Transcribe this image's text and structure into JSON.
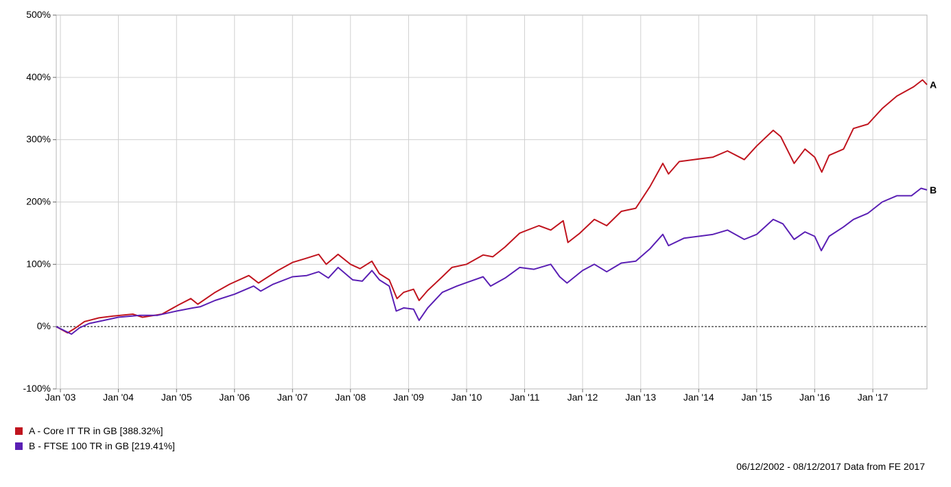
{
  "chart_data": {
    "type": "line",
    "ylim": [
      -100,
      500
    ],
    "y_ticks": [
      "-100%",
      "0%",
      "100%",
      "200%",
      "300%",
      "400%",
      "500%"
    ],
    "x_range": [
      "2002-12-06",
      "2017-12-08"
    ],
    "x_ticks": [
      {
        "label": "Jan '03",
        "date": "2003-01-01"
      },
      {
        "label": "Jan '04",
        "date": "2004-01-01"
      },
      {
        "label": "Jan '05",
        "date": "2005-01-01"
      },
      {
        "label": "Jan '06",
        "date": "2006-01-01"
      },
      {
        "label": "Jan '07",
        "date": "2007-01-01"
      },
      {
        "label": "Jan '08",
        "date": "2008-01-01"
      },
      {
        "label": "Jan '09",
        "date": "2009-01-01"
      },
      {
        "label": "Jan '10",
        "date": "2010-01-01"
      },
      {
        "label": "Jan '11",
        "date": "2011-01-01"
      },
      {
        "label": "Jan '12",
        "date": "2012-01-01"
      },
      {
        "label": "Jan '13",
        "date": "2013-01-01"
      },
      {
        "label": "Jan '14",
        "date": "2014-01-01"
      },
      {
        "label": "Jan '15",
        "date": "2015-01-01"
      },
      {
        "label": "Jan '16",
        "date": "2016-01-01"
      },
      {
        "label": "Jan '17",
        "date": "2017-01-01"
      }
    ],
    "grid": true,
    "zero_line": "dotted",
    "series": [
      {
        "name": "A - Core IT TR in GB [388.32%]",
        "label": "A",
        "color": "#c0141e",
        "points": [
          [
            "2002-12-06",
            0
          ],
          [
            "2003-02-15",
            -10
          ],
          [
            "2003-04-01",
            -3
          ],
          [
            "2003-06-01",
            8
          ],
          [
            "2003-09-01",
            14
          ],
          [
            "2003-12-01",
            17
          ],
          [
            "2004-04-01",
            20
          ],
          [
            "2004-06-01",
            15
          ],
          [
            "2004-10-01",
            20
          ],
          [
            "2005-01-15",
            35
          ],
          [
            "2005-04-01",
            45
          ],
          [
            "2005-05-15",
            36
          ],
          [
            "2005-09-01",
            55
          ],
          [
            "2005-12-01",
            68
          ],
          [
            "2006-04-01",
            82
          ],
          [
            "2006-06-01",
            70
          ],
          [
            "2006-10-01",
            90
          ],
          [
            "2007-01-01",
            103
          ],
          [
            "2007-04-01",
            110
          ],
          [
            "2007-06-15",
            116
          ],
          [
            "2007-08-01",
            100
          ],
          [
            "2007-10-15",
            116
          ],
          [
            "2008-01-01",
            100
          ],
          [
            "2008-03-01",
            93
          ],
          [
            "2008-05-15",
            105
          ],
          [
            "2008-07-01",
            85
          ],
          [
            "2008-09-01",
            75
          ],
          [
            "2008-10-20",
            45
          ],
          [
            "2008-12-01",
            55
          ],
          [
            "2009-02-01",
            60
          ],
          [
            "2009-03-08",
            42
          ],
          [
            "2009-05-01",
            58
          ],
          [
            "2009-08-01",
            80
          ],
          [
            "2009-10-01",
            95
          ],
          [
            "2010-01-01",
            100
          ],
          [
            "2010-04-15",
            115
          ],
          [
            "2010-06-15",
            112
          ],
          [
            "2010-09-01",
            128
          ],
          [
            "2010-12-01",
            150
          ],
          [
            "2011-04-01",
            162
          ],
          [
            "2011-06-15",
            155
          ],
          [
            "2011-09-01",
            170
          ],
          [
            "2011-10-01",
            135
          ],
          [
            "2011-12-15",
            150
          ],
          [
            "2012-03-15",
            172
          ],
          [
            "2012-06-01",
            162
          ],
          [
            "2012-09-01",
            185
          ],
          [
            "2012-12-01",
            190
          ],
          [
            "2013-03-01",
            225
          ],
          [
            "2013-05-20",
            262
          ],
          [
            "2013-06-25",
            245
          ],
          [
            "2013-09-01",
            265
          ],
          [
            "2013-12-01",
            268
          ],
          [
            "2014-04-01",
            272
          ],
          [
            "2014-07-01",
            282
          ],
          [
            "2014-10-15",
            268
          ],
          [
            "2015-01-01",
            290
          ],
          [
            "2015-04-15",
            315
          ],
          [
            "2015-06-01",
            305
          ],
          [
            "2015-08-25",
            262
          ],
          [
            "2015-11-01",
            285
          ],
          [
            "2016-01-01",
            272
          ],
          [
            "2016-02-15",
            248
          ],
          [
            "2016-04-01",
            275
          ],
          [
            "2016-07-01",
            285
          ],
          [
            "2016-09-01",
            318
          ],
          [
            "2016-12-01",
            325
          ],
          [
            "2017-03-01",
            350
          ],
          [
            "2017-06-01",
            370
          ],
          [
            "2017-09-15",
            385
          ],
          [
            "2017-11-10",
            396
          ],
          [
            "2017-12-08",
            388.32
          ]
        ]
      },
      {
        "name": "B - FTSE 100 TR in GB [219.41%]",
        "label": "B",
        "color": "#5a1fb4",
        "points": [
          [
            "2002-12-06",
            0
          ],
          [
            "2003-03-12",
            -12
          ],
          [
            "2003-05-01",
            -2
          ],
          [
            "2003-07-01",
            5
          ],
          [
            "2003-10-01",
            10
          ],
          [
            "2004-01-01",
            15
          ],
          [
            "2004-05-15",
            18
          ],
          [
            "2004-09-01",
            18
          ],
          [
            "2005-01-01",
            25
          ],
          [
            "2005-04-15",
            30
          ],
          [
            "2005-06-01",
            32
          ],
          [
            "2005-09-01",
            42
          ],
          [
            "2006-01-01",
            52
          ],
          [
            "2006-05-01",
            65
          ],
          [
            "2006-06-15",
            57
          ],
          [
            "2006-09-01",
            68
          ],
          [
            "2007-01-01",
            80
          ],
          [
            "2007-04-01",
            82
          ],
          [
            "2007-06-15",
            88
          ],
          [
            "2007-08-15",
            78
          ],
          [
            "2007-10-15",
            95
          ],
          [
            "2008-01-15",
            75
          ],
          [
            "2008-03-15",
            73
          ],
          [
            "2008-05-15",
            90
          ],
          [
            "2008-07-01",
            75
          ],
          [
            "2008-09-01",
            65
          ],
          [
            "2008-10-15",
            25
          ],
          [
            "2008-12-01",
            30
          ],
          [
            "2009-02-01",
            28
          ],
          [
            "2009-03-08",
            10
          ],
          [
            "2009-05-01",
            30
          ],
          [
            "2009-08-01",
            55
          ],
          [
            "2009-11-01",
            65
          ],
          [
            "2010-01-15",
            72
          ],
          [
            "2010-04-15",
            80
          ],
          [
            "2010-06-01",
            65
          ],
          [
            "2010-09-01",
            78
          ],
          [
            "2010-12-01",
            95
          ],
          [
            "2011-03-01",
            92
          ],
          [
            "2011-06-15",
            100
          ],
          [
            "2011-08-10",
            80
          ],
          [
            "2011-09-25",
            70
          ],
          [
            "2012-01-01",
            90
          ],
          [
            "2012-03-15",
            100
          ],
          [
            "2012-06-01",
            88
          ],
          [
            "2012-09-01",
            102
          ],
          [
            "2012-12-01",
            105
          ],
          [
            "2013-03-01",
            125
          ],
          [
            "2013-05-20",
            148
          ],
          [
            "2013-06-25",
            130
          ],
          [
            "2013-10-01",
            142
          ],
          [
            "2014-01-01",
            145
          ],
          [
            "2014-04-01",
            148
          ],
          [
            "2014-07-01",
            155
          ],
          [
            "2014-10-15",
            140
          ],
          [
            "2015-01-01",
            148
          ],
          [
            "2015-04-15",
            172
          ],
          [
            "2015-06-15",
            165
          ],
          [
            "2015-08-25",
            140
          ],
          [
            "2015-11-01",
            152
          ],
          [
            "2016-01-01",
            145
          ],
          [
            "2016-02-12",
            122
          ],
          [
            "2016-04-01",
            145
          ],
          [
            "2016-07-01",
            160
          ],
          [
            "2016-09-01",
            172
          ],
          [
            "2016-12-01",
            182
          ],
          [
            "2017-03-01",
            200
          ],
          [
            "2017-06-01",
            210
          ],
          [
            "2017-09-01",
            210
          ],
          [
            "2017-11-01",
            222
          ],
          [
            "2017-12-08",
            219.41
          ]
        ]
      }
    ]
  },
  "legend": {
    "items": [
      {
        "label": "A - Core IT TR in GB [388.32%]",
        "color": "#c0141e"
      },
      {
        "label": "B - FTSE 100 TR in GB [219.41%]",
        "color": "#5a1fb4"
      }
    ]
  },
  "footer": "06/12/2002 - 08/12/2017 Data from FE 2017"
}
